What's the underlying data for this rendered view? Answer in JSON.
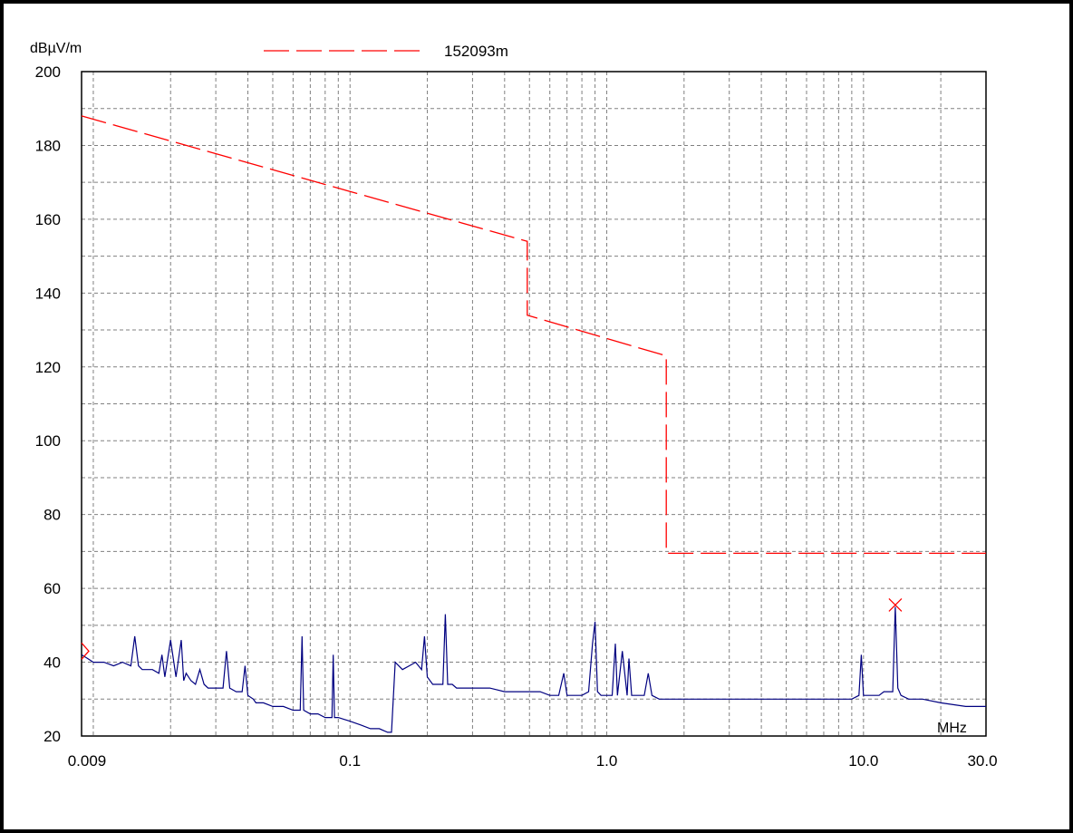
{
  "chart_data": {
    "type": "line",
    "ylabel": "dBµV/m",
    "xlabel": "MHz",
    "x_scale": "log",
    "xlim": [
      0.009,
      30.0
    ],
    "ylim": [
      20,
      200
    ],
    "grid": true,
    "legend_position": "top",
    "x_tick_labels": [
      "0.009",
      "0.1",
      "1.0",
      "10.0",
      "30.0"
    ],
    "x_tick_values": [
      0.009,
      0.1,
      1.0,
      10.0,
      30.0
    ],
    "y_tick_labels": [
      "200",
      "180",
      "160",
      "140",
      "120",
      "100",
      "80",
      "60",
      "40",
      "20"
    ],
    "y_tick_values": [
      200,
      180,
      160,
      140,
      120,
      100,
      80,
      60,
      40,
      20
    ],
    "colors": {
      "limit": "#ff0000",
      "measurement": "#000080",
      "grid": "#808080",
      "marker": "#ff0000"
    },
    "series": [
      {
        "name": "152093m",
        "style": "dashed",
        "x": [
          0.009,
          0.49,
          0.49,
          1.705,
          1.705,
          30.0
        ],
        "y": [
          188.0,
          154.0,
          134.0,
          123.0,
          69.5,
          69.5
        ]
      },
      {
        "style": "solid",
        "x": [
          0.009,
          0.0095,
          0.01,
          0.011,
          0.012,
          0.013,
          0.014,
          0.0145,
          0.015,
          0.0155,
          0.017,
          0.018,
          0.0185,
          0.019,
          0.02,
          0.021,
          0.022,
          0.0225,
          0.023,
          0.024,
          0.025,
          0.026,
          0.027,
          0.028,
          0.03,
          0.032,
          0.033,
          0.034,
          0.036,
          0.038,
          0.039,
          0.04,
          0.042,
          0.043,
          0.044,
          0.046,
          0.05,
          0.055,
          0.06,
          0.064,
          0.065,
          0.066,
          0.07,
          0.075,
          0.08,
          0.085,
          0.086,
          0.087,
          0.09,
          0.1,
          0.11,
          0.12,
          0.13,
          0.14,
          0.145,
          0.15,
          0.16,
          0.17,
          0.18,
          0.19,
          0.195,
          0.2,
          0.21,
          0.22,
          0.23,
          0.235,
          0.24,
          0.25,
          0.26,
          0.27,
          0.3,
          0.35,
          0.4,
          0.45,
          0.5,
          0.55,
          0.6,
          0.65,
          0.68,
          0.7,
          0.75,
          0.8,
          0.85,
          0.88,
          0.9,
          0.92,
          0.95,
          1.0,
          1.05,
          1.08,
          1.1,
          1.15,
          1.2,
          1.22,
          1.25,
          1.3,
          1.4,
          1.45,
          1.5,
          1.6,
          1.8,
          2.0,
          2.5,
          3.0,
          4.0,
          5.0,
          6.0,
          7.0,
          8.0,
          9.0,
          9.6,
          9.8,
          10.0,
          10.5,
          11.5,
          12.0,
          13.0,
          13.3,
          13.6,
          14.0,
          15.0,
          17.0,
          20.0,
          25.0,
          30.0
        ],
        "y": [
          42,
          41,
          40,
          40,
          39,
          40,
          39,
          47,
          39,
          38,
          38,
          37,
          42,
          36,
          46,
          36,
          46,
          35,
          37,
          35,
          34,
          38,
          34,
          33,
          33,
          33,
          43,
          33,
          32,
          32,
          39,
          31,
          30,
          29,
          29,
          29,
          28,
          28,
          27,
          27,
          47,
          27,
          26,
          26,
          25,
          25,
          42,
          25,
          25,
          24,
          23,
          22,
          22,
          21,
          21,
          40,
          38,
          39,
          40,
          38,
          47,
          36,
          34,
          34,
          34,
          53,
          34,
          34,
          33,
          33,
          33,
          33,
          32,
          32,
          32,
          32,
          31,
          31,
          37,
          31,
          31,
          31,
          32,
          45,
          51,
          32,
          31,
          31,
          31,
          45,
          31,
          43,
          31,
          41,
          31,
          31,
          31,
          37,
          31,
          30,
          30,
          30,
          30,
          30,
          30,
          30,
          30,
          30,
          30,
          30,
          31,
          42,
          31,
          31,
          31,
          32,
          32,
          55,
          33,
          31,
          30,
          30,
          29,
          28,
          28
        ]
      }
    ],
    "markers": [
      {
        "symbol": "x",
        "x": 13.3,
        "y": 55.5
      },
      {
        "symbol": "triangle",
        "x": 0.009,
        "y": 43
      }
    ]
  }
}
